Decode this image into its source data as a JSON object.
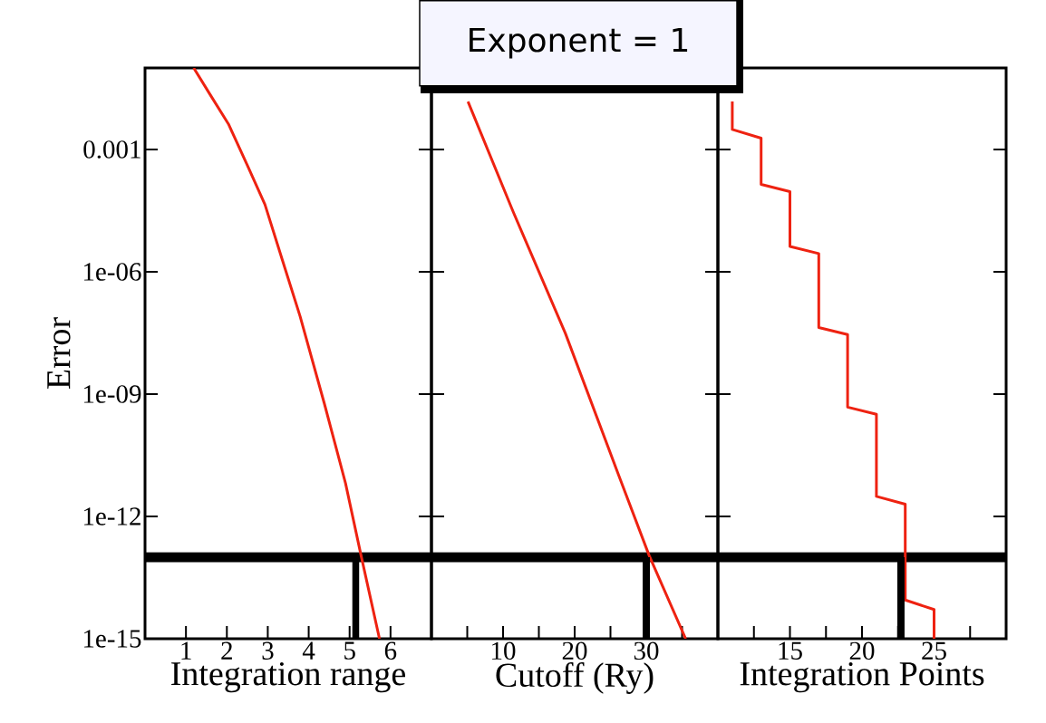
{
  "chart_data": [
    {
      "type": "line",
      "xlabel": "Integration range",
      "ylabel": "Error",
      "log": true,
      "xlim": [
        0,
        7
      ],
      "xticks": [
        1,
        2,
        3,
        4,
        5,
        6
      ],
      "ylim": [
        1e-15,
        0.1
      ],
      "yticks": [
        {
          "value": 1e-15,
          "label": "1e-15"
        },
        {
          "value": 1e-12,
          "label": "1e-12"
        },
        {
          "value": 1e-09,
          "label": "1e-09"
        },
        {
          "value": 1e-06,
          "label": "1e-06"
        },
        {
          "value": 0.001,
          "label": "0.001"
        }
      ],
      "ref_lines": [
        {
          "axis": "y",
          "value": 1e-13,
          "color": "#000000"
        }
      ],
      "series": [
        {
          "color": "#ee2211",
          "x": [
            1.19,
            1.57,
            2.04,
            2.51,
            2.93,
            3.36,
            3.79,
            4.38,
            4.64,
            4.9,
            5.28,
            5.73
          ],
          "values": [
            0.1,
            0.024,
            0.0042,
            0.00039,
            4.5e-05,
            1.9e-06,
            8.1e-08,
            6e-10,
            6.3e-11,
            6.5e-12,
            1.1e-13,
            1e-15
          ]
        },
        {
          "color": "#000000",
          "x": [
            5.15,
            5.15
          ],
          "values": [
            1e-15,
            1e-13
          ]
        }
      ]
    },
    {
      "type": "line",
      "xlabel": "Cutoff (Ry)",
      "log": true,
      "tick_labels": "x",
      "xlim": [
        0,
        40
      ],
      "xticks": [
        {
          "value": 5,
          "label": null
        },
        10,
        {
          "value": 15,
          "label": null
        },
        20,
        {
          "value": 25,
          "label": null
        },
        30,
        {
          "value": 35,
          "label": null
        }
      ],
      "ylim": [
        1e-15,
        0.1
      ],
      "yticks": [
        {
          "value": 1e-15,
          "label": null
        },
        {
          "value": 1e-12,
          "label": null
        },
        {
          "value": 1e-09,
          "label": null
        },
        {
          "value": 1e-06,
          "label": null
        },
        {
          "value": 0.001,
          "label": null
        }
      ],
      "ref_lines": [
        {
          "axis": "y",
          "value": 1e-13,
          "color": "#000000"
        }
      ],
      "annotations": [
        "Exponent = 1"
      ],
      "series": [
        {
          "color": "#ee2211",
          "x": [
            5.1,
            11.4,
            18.7,
            26,
            30.4,
            35.5
          ],
          "values": [
            0.015,
            3e-05,
            3.1e-08,
            1.2e-11,
            1.1e-13,
            1e-15
          ]
        },
        {
          "color": "#000000",
          "x": [
            30,
            30
          ],
          "values": [
            1e-15,
            1e-13
          ]
        }
      ]
    },
    {
      "type": "line",
      "xlabel": "Integration Points",
      "log": true,
      "tick_labels": "x",
      "xlim": [
        10,
        30
      ],
      "xticks": [
        {
          "value": 12.5,
          "label": null
        },
        15,
        {
          "value": 17.5,
          "label": null
        },
        20,
        {
          "value": 22.5,
          "label": null
        },
        25,
        {
          "value": 27.5,
          "label": null
        }
      ],
      "ylim": [
        1e-15,
        0.1
      ],
      "yticks": [
        {
          "value": 1e-15,
          "label": null
        },
        {
          "value": 1e-12,
          "label": null
        },
        {
          "value": 1e-09,
          "label": null
        },
        {
          "value": 1e-06,
          "label": null
        },
        {
          "value": 0.001,
          "label": null
        }
      ],
      "ref_lines": [
        {
          "axis": "y",
          "value": 1e-13,
          "color": "#000000"
        }
      ],
      "series": [
        {
          "color": "#ee2211",
          "x": [
            11,
            11,
            13,
            13,
            15,
            15,
            17,
            17,
            19,
            19,
            21,
            21,
            23,
            23,
            25,
            25
          ],
          "values": [
            0.015,
            0.0031,
            0.0019,
            0.00014,
            9.3e-05,
            4.2e-06,
            2.8e-06,
            4.3e-08,
            2.9e-08,
            4.8e-10,
            3.2e-10,
            3.1e-12,
            2e-12,
            8.9e-15,
            5.2e-15,
            1e-15
          ]
        },
        {
          "color": "#000000",
          "x": [
            22.7,
            22.7
          ],
          "values": [
            1e-15,
            1e-13
          ]
        }
      ]
    }
  ]
}
